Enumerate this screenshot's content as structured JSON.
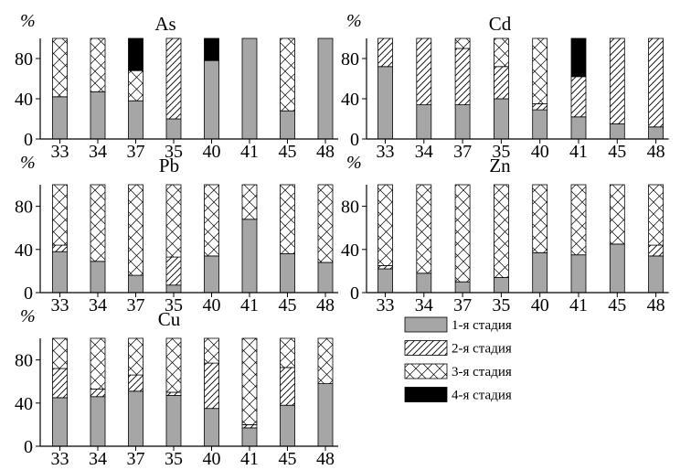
{
  "legend": {
    "items": [
      {
        "label": "1-я стадия",
        "fill": "#a6a6a6"
      },
      {
        "label": "2-я стадия",
        "fill": "hatch"
      },
      {
        "label": "3-я стадия",
        "fill": "cross"
      },
      {
        "label": "4-я стадия",
        "fill": "#000000"
      }
    ]
  },
  "chart_data": [
    {
      "type": "bar",
      "stacked": true,
      "title": "As",
      "ylabel": "%",
      "ylim": [
        0,
        100
      ],
      "yticks": [
        0,
        40,
        80
      ],
      "categories": [
        "33",
        "34",
        "37",
        "35",
        "40",
        "41",
        "45",
        "48"
      ],
      "series": [
        {
          "name": "1-я стадия",
          "values": [
            42,
            47,
            38,
            20,
            78,
            100,
            28,
            100
          ]
        },
        {
          "name": "2-я стадия",
          "values": [
            0,
            0,
            0,
            80,
            0,
            0,
            0,
            0
          ]
        },
        {
          "name": "3-я стадия",
          "values": [
            58,
            53,
            30,
            0,
            0,
            0,
            72,
            0
          ]
        },
        {
          "name": "4-я стадия",
          "values": [
            0,
            0,
            32,
            0,
            22,
            0,
            0,
            0
          ]
        }
      ]
    },
    {
      "type": "bar",
      "stacked": true,
      "title": "Cd",
      "ylabel": "%",
      "ylim": [
        0,
        100
      ],
      "yticks": [
        0,
        40,
        80
      ],
      "categories": [
        "33",
        "34",
        "37",
        "35",
        "40",
        "41",
        "45",
        "48"
      ],
      "series": [
        {
          "name": "1-я стадия",
          "values": [
            72,
            34,
            34,
            40,
            29,
            22,
            15,
            12
          ]
        },
        {
          "name": "2-я стадия",
          "values": [
            28,
            66,
            56,
            32,
            6,
            40,
            85,
            88
          ]
        },
        {
          "name": "3-я стадия",
          "values": [
            0,
            0,
            10,
            28,
            65,
            0,
            0,
            0
          ]
        },
        {
          "name": "4-я стадия",
          "values": [
            0,
            0,
            0,
            0,
            0,
            38,
            0,
            0
          ]
        }
      ]
    },
    {
      "type": "bar",
      "stacked": true,
      "title": "Pb",
      "ylabel": "%",
      "ylim": [
        0,
        100
      ],
      "yticks": [
        0,
        40,
        80
      ],
      "categories": [
        "33",
        "34",
        "37",
        "35",
        "40",
        "41",
        "45",
        "48"
      ],
      "series": [
        {
          "name": "1-я стадия",
          "values": [
            38,
            29,
            16,
            7,
            34,
            68,
            36,
            28
          ]
        },
        {
          "name": "2-я стадия",
          "values": [
            6,
            0,
            0,
            26,
            0,
            0,
            0,
            0
          ]
        },
        {
          "name": "3-я стадия",
          "values": [
            56,
            71,
            84,
            67,
            66,
            32,
            64,
            72
          ]
        },
        {
          "name": "4-я стадия",
          "values": [
            0,
            0,
            0,
            0,
            0,
            0,
            0,
            0
          ]
        }
      ]
    },
    {
      "type": "bar",
      "stacked": true,
      "title": "Zn",
      "ylabel": "%",
      "ylim": [
        0,
        100
      ],
      "yticks": [
        0,
        40,
        80
      ],
      "categories": [
        "33",
        "34",
        "37",
        "35",
        "40",
        "41",
        "45",
        "48"
      ],
      "series": [
        {
          "name": "1-я стадия",
          "values": [
            22,
            18,
            10,
            14,
            37,
            35,
            45,
            34
          ]
        },
        {
          "name": "2-я стадия",
          "values": [
            3,
            0,
            0,
            0,
            0,
            0,
            0,
            10
          ]
        },
        {
          "name": "3-я стадия",
          "values": [
            75,
            82,
            90,
            86,
            63,
            65,
            55,
            56
          ]
        },
        {
          "name": "4-я стадия",
          "values": [
            0,
            0,
            0,
            0,
            0,
            0,
            0,
            0
          ]
        }
      ]
    },
    {
      "type": "bar",
      "stacked": true,
      "title": "Cu",
      "ylabel": "%",
      "ylim": [
        0,
        100
      ],
      "yticks": [
        0,
        40,
        80
      ],
      "categories": [
        "33",
        "34",
        "37",
        "35",
        "40",
        "41",
        "45",
        "48"
      ],
      "series": [
        {
          "name": "1-я стадия",
          "values": [
            45,
            46,
            51,
            47,
            35,
            17,
            38,
            58
          ]
        },
        {
          "name": "2-я стадия",
          "values": [
            27,
            7,
            15,
            3,
            42,
            3,
            35,
            0
          ]
        },
        {
          "name": "3-я стадия",
          "values": [
            28,
            47,
            34,
            50,
            23,
            80,
            27,
            42
          ]
        },
        {
          "name": "4-я стадия",
          "values": [
            0,
            0,
            0,
            0,
            0,
            0,
            0,
            0
          ]
        }
      ]
    }
  ]
}
